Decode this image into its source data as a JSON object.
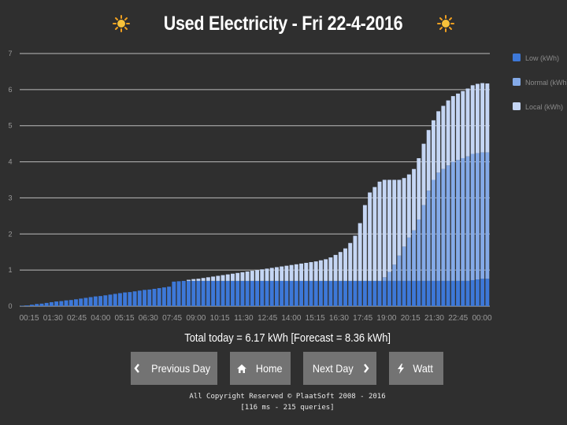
{
  "page": {
    "title": "Used Electricity - Fri 22-4-2016"
  },
  "icons": {
    "title_left": "sun-icon",
    "title_right": "sun-icon"
  },
  "colors": {
    "background": "#2f2f2f",
    "low": "#3d78d8",
    "normal": "#84aae8",
    "local": "#c5d6f4",
    "grid": "#bbbbbb",
    "button": "#737373"
  },
  "chart_data": {
    "type": "bar",
    "stacked": true,
    "title": "Used Electricity - Fri 22-4-2016",
    "xlabel": "",
    "ylabel": "",
    "ylim": [
      0,
      7
    ],
    "yticks": [
      0,
      1,
      2,
      3,
      4,
      5,
      6,
      7
    ],
    "grid": true,
    "legend_position": "top-right",
    "x_tick_labels": [
      "00:15",
      "01:30",
      "02:45",
      "04:00",
      "05:15",
      "06:30",
      "07:45",
      "09:00",
      "10:15",
      "11:30",
      "12:45",
      "14:00",
      "15:15",
      "16:30",
      "17:45",
      "19:00",
      "20:15",
      "21:30",
      "22:45",
      "00:00"
    ],
    "series": [
      {
        "name": "Low (kWh)",
        "values": [
          0.01,
          0.02,
          0.04,
          0.06,
          0.07,
          0.09,
          0.11,
          0.13,
          0.14,
          0.16,
          0.17,
          0.19,
          0.21,
          0.23,
          0.25,
          0.27,
          0.28,
          0.3,
          0.32,
          0.34,
          0.36,
          0.38,
          0.39,
          0.41,
          0.43,
          0.45,
          0.46,
          0.48,
          0.5,
          0.52,
          0.54,
          0.68,
          0.69,
          0.7,
          0.7,
          0.7,
          0.7,
          0.7,
          0.7,
          0.7,
          0.7,
          0.7,
          0.7,
          0.7,
          0.7,
          0.7,
          0.7,
          0.7,
          0.7,
          0.7,
          0.7,
          0.7,
          0.7,
          0.7,
          0.7,
          0.7,
          0.7,
          0.7,
          0.7,
          0.7,
          0.7,
          0.7,
          0.7,
          0.7,
          0.7,
          0.7,
          0.7,
          0.7,
          0.7,
          0.7,
          0.7,
          0.7,
          0.7,
          0.7,
          0.7,
          0.7,
          0.7,
          0.7,
          0.7,
          0.7,
          0.7,
          0.7,
          0.7,
          0.7,
          0.7,
          0.7,
          0.7,
          0.7,
          0.7,
          0.7,
          0.7,
          0.7,
          0.72,
          0.74,
          0.76,
          0.76
        ]
      },
      {
        "name": "Normal (kWh)",
        "values": [
          0,
          0,
          0,
          0,
          0,
          0,
          0,
          0,
          0,
          0,
          0,
          0,
          0,
          0,
          0,
          0,
          0,
          0,
          0,
          0,
          0,
          0,
          0,
          0,
          0,
          0,
          0,
          0,
          0,
          0,
          0,
          0,
          0,
          0,
          0,
          0,
          0,
          0,
          0,
          0,
          0,
          0,
          0,
          0,
          0,
          0,
          0,
          0,
          0,
          0,
          0,
          0,
          0,
          0,
          0,
          0,
          0,
          0,
          0,
          0,
          0,
          0,
          0,
          0,
          0,
          0,
          0,
          0,
          0,
          0,
          0,
          0,
          0,
          0,
          0.1,
          0.25,
          0.45,
          0.7,
          0.95,
          1.2,
          1.4,
          1.7,
          2.1,
          2.5,
          2.8,
          3.0,
          3.1,
          3.2,
          3.3,
          3.35,
          3.4,
          3.45,
          3.5,
          3.5,
          3.5,
          3.5
        ]
      },
      {
        "name": "Local (kWh)",
        "values": [
          0,
          0,
          0,
          0,
          0,
          0,
          0,
          0,
          0,
          0,
          0,
          0,
          0,
          0,
          0,
          0,
          0,
          0,
          0,
          0,
          0,
          0,
          0,
          0,
          0,
          0,
          0,
          0,
          0,
          0,
          0,
          0,
          0,
          0,
          0.03,
          0.05,
          0.06,
          0.08,
          0.1,
          0.12,
          0.14,
          0.16,
          0.18,
          0.2,
          0.22,
          0.24,
          0.26,
          0.28,
          0.3,
          0.32,
          0.34,
          0.36,
          0.38,
          0.4,
          0.42,
          0.44,
          0.46,
          0.48,
          0.5,
          0.52,
          0.54,
          0.57,
          0.6,
          0.65,
          0.72,
          0.8,
          0.9,
          1.05,
          1.25,
          1.6,
          2.1,
          2.45,
          2.6,
          2.75,
          2.7,
          2.55,
          2.35,
          2.1,
          1.9,
          1.75,
          1.7,
          1.7,
          1.7,
          1.68,
          1.65,
          1.7,
          1.75,
          1.8,
          1.82,
          1.84,
          1.86,
          1.88,
          1.9,
          1.92,
          1.92,
          1.91
        ]
      }
    ]
  },
  "summary": {
    "text": "Total today = 6.17 kWh [Forecast = 8.36 kWh]"
  },
  "buttons": {
    "previous_day": "Previous Day",
    "home": "Home",
    "next_day": "Next Day",
    "watt": "Watt"
  },
  "footer": {
    "line1": "All Copyright Reserved © PlaatSoft 2008 - 2016",
    "line2": "[116 ms - 215 queries]"
  }
}
